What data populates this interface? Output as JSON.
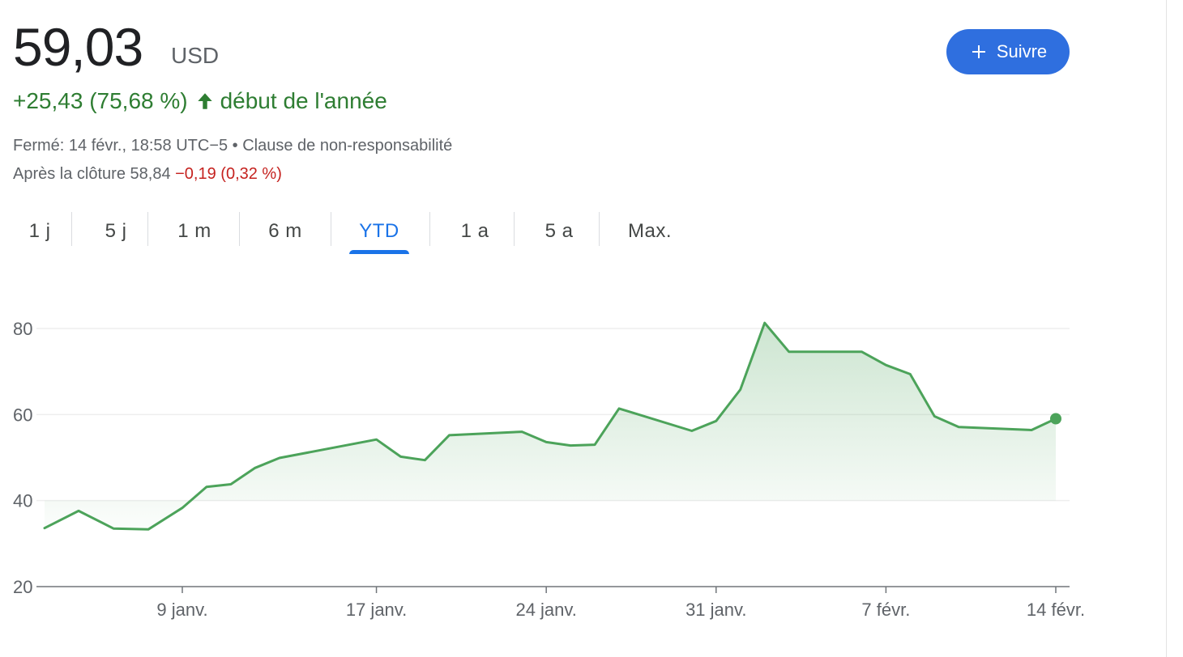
{
  "quote": {
    "price": "59,03",
    "currency": "USD",
    "change": "+25,43 (75,68 %)",
    "change_period": "début de l'année",
    "arrow_icon": "arrow-up-icon",
    "status_line": "Fermé: 14 févr., 18:58 UTC−5 • Clause de non-responsabilité",
    "after_hours_label": "Après la clôture 58,84",
    "after_hours_change": "−0,19 (0,32 %)"
  },
  "follow_button": {
    "label": "Suivre",
    "icon": "plus-icon",
    "color": "#2f6fdf"
  },
  "tabs": [
    {
      "label": "1 j",
      "active": false
    },
    {
      "label": "5 j",
      "active": false
    },
    {
      "label": "1 m",
      "active": false
    },
    {
      "label": "6 m",
      "active": false
    },
    {
      "label": "YTD",
      "active": true
    },
    {
      "label": "1 a",
      "active": false
    },
    {
      "label": "5 a",
      "active": false
    },
    {
      "label": "Max.",
      "active": false
    }
  ],
  "colors": {
    "positive": "#2e7d32",
    "negative": "#c5221f",
    "accent": "#1a73e8",
    "line": "#4ca35a"
  },
  "chart_data": {
    "type": "area",
    "x": [
      "2023-01-03",
      "2023-01-04",
      "2023-01-05",
      "2023-01-06",
      "2023-01-09",
      "2023-01-10",
      "2023-01-11",
      "2023-01-12",
      "2023-01-13",
      "2023-01-17",
      "2023-01-18",
      "2023-01-19",
      "2023-01-20",
      "2023-01-23",
      "2023-01-24",
      "2023-01-25",
      "2023-01-26",
      "2023-01-27",
      "2023-01-30",
      "2023-01-31",
      "2023-02-01",
      "2023-02-02",
      "2023-02-03",
      "2023-02-06",
      "2023-02-07",
      "2023-02-08",
      "2023-02-09",
      "2023-02-10",
      "2023-02-13",
      "2023-02-14"
    ],
    "series": [
      {
        "values": [
          33.6,
          37.6,
          33.5,
          33.3,
          38.3,
          43.2,
          43.8,
          47.6,
          49.9,
          54.2,
          50.2,
          49.4,
          55.2,
          56.0,
          53.6,
          52.8,
          53.0,
          61.4,
          56.2,
          58.5,
          65.8,
          81.3,
          74.6,
          74.6,
          71.5,
          69.4,
          59.6,
          57.1,
          56.4,
          59.03
        ]
      }
    ],
    "x_ticks": [
      {
        "date": "2023-01-09",
        "label": "9 janv."
      },
      {
        "date": "2023-01-17",
        "label": "17 janv."
      },
      {
        "date": "2023-01-24",
        "label": "24 janv."
      },
      {
        "date": "2023-01-31",
        "label": "31 janv."
      },
      {
        "date": "2023-02-07",
        "label": "7 févr."
      },
      {
        "date": "2023-02-14",
        "label": "14 févr."
      }
    ],
    "y_ticks": [
      20,
      40,
      60,
      80
    ],
    "ylim": [
      20,
      82
    ],
    "grid": true,
    "last_point_marker": true
  }
}
